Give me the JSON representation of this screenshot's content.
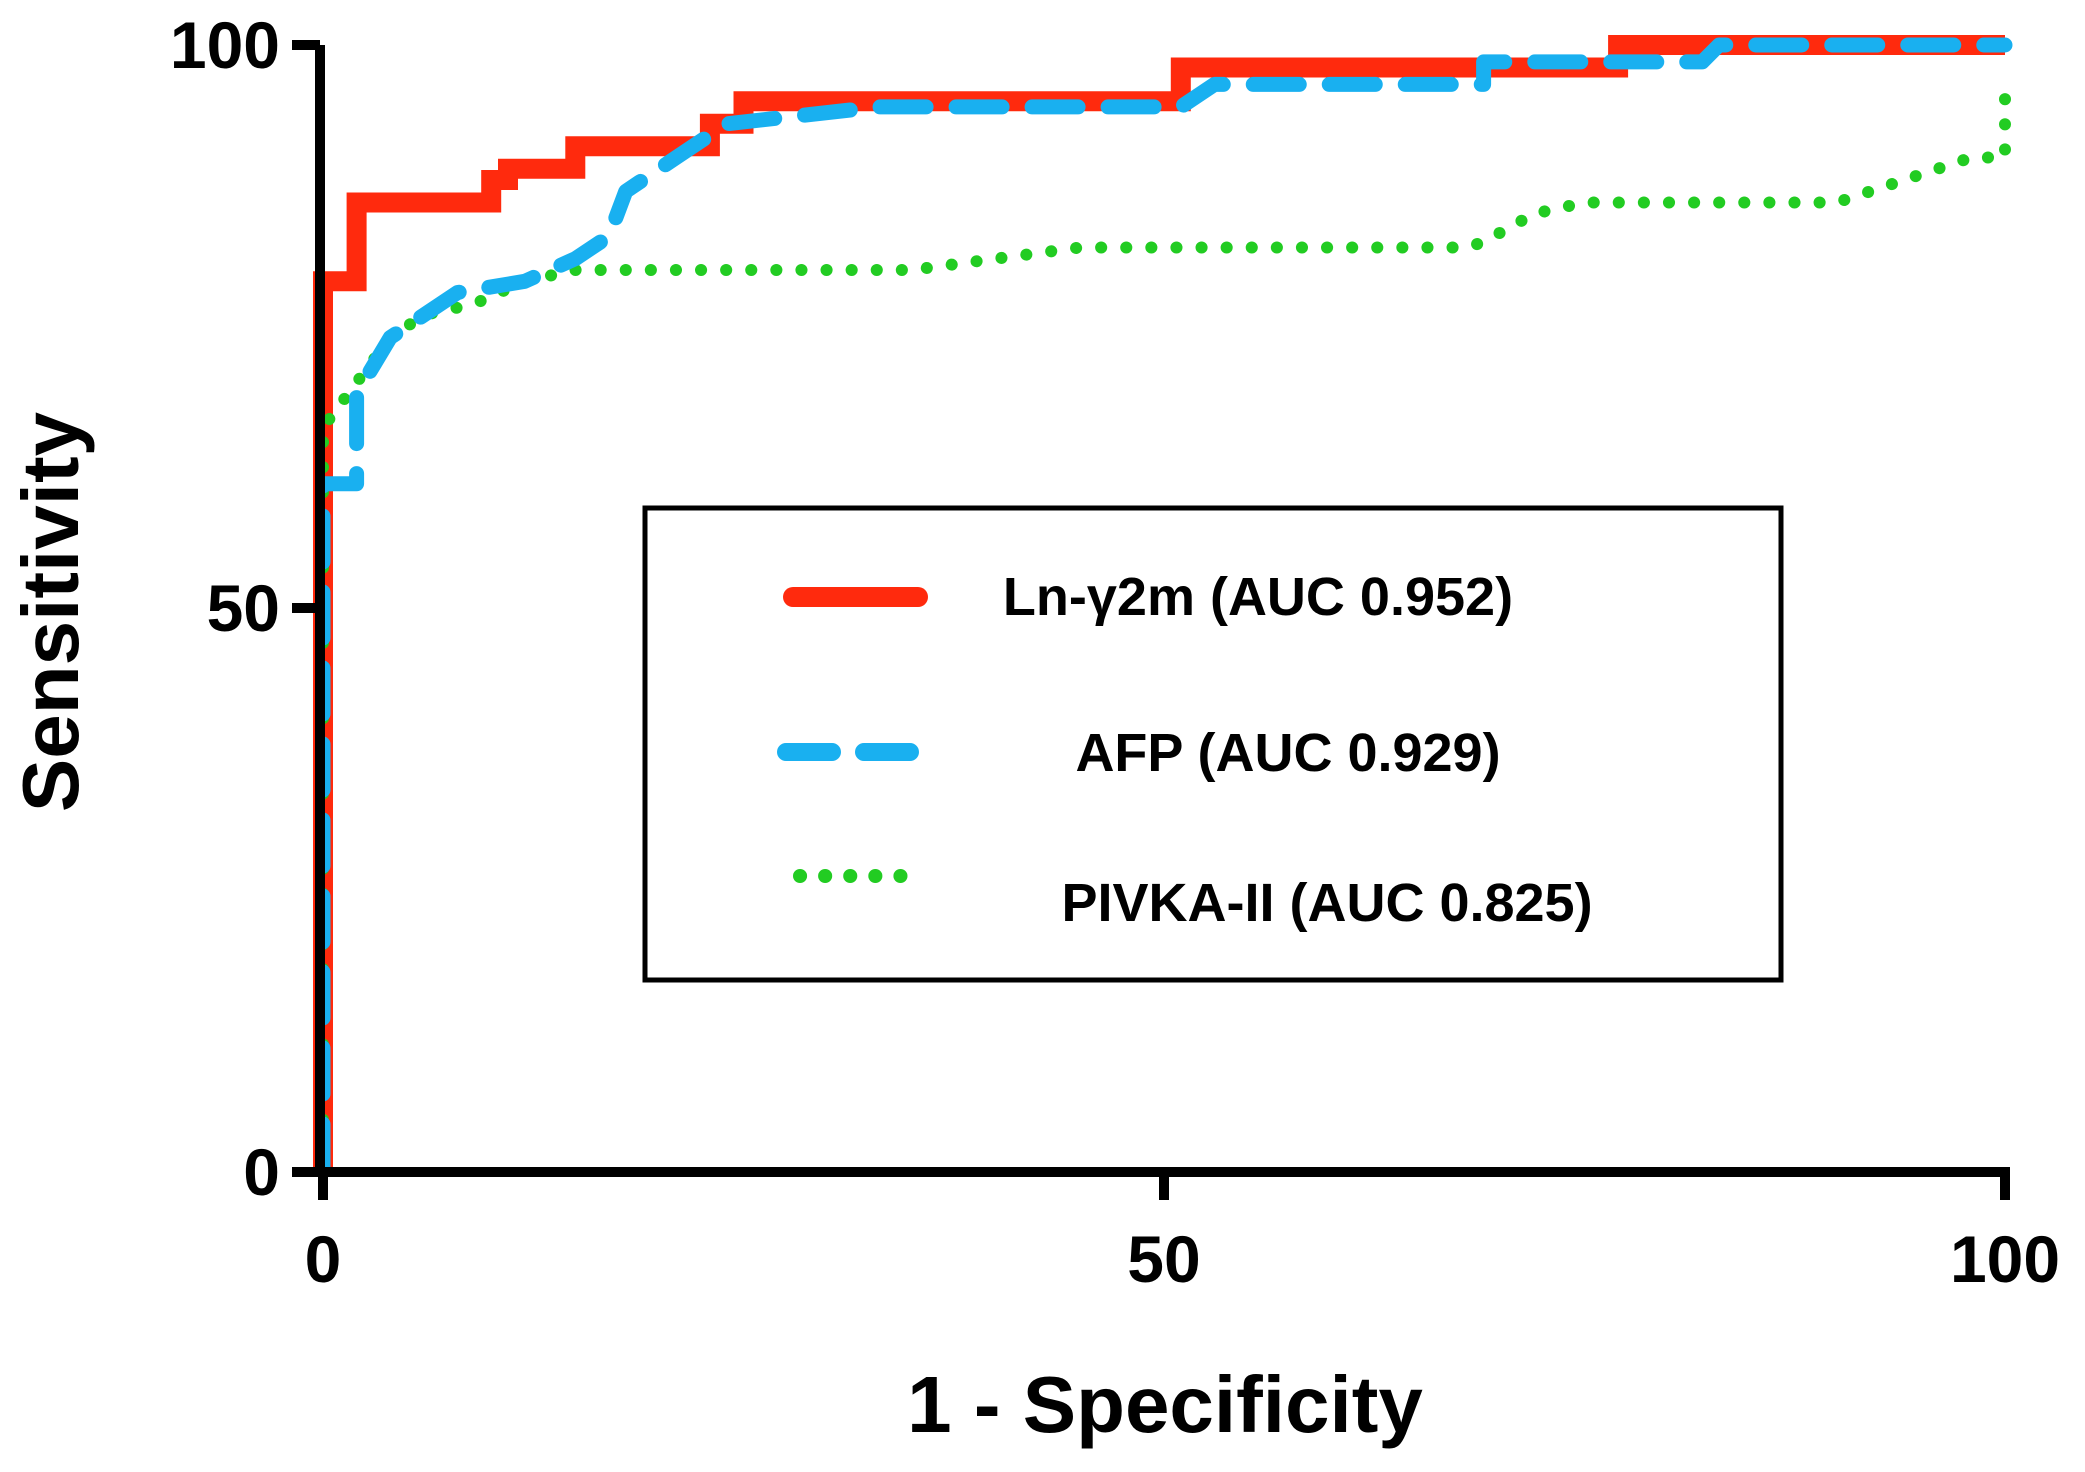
{
  "chart_data": {
    "type": "line",
    "xlabel": "1 - Specificity",
    "ylabel": "Sensitivity",
    "xlim": [
      0,
      100
    ],
    "ylim": [
      0,
      100
    ],
    "xticks": [
      "0",
      "50",
      "100"
    ],
    "yticks": [
      "0",
      "50",
      "100"
    ],
    "legend_position": "center-right",
    "series": [
      {
        "name": "Ln-γ2m (AUC 0.952)",
        "style": "solid",
        "color": "#ff2a0d",
        "points": [
          [
            0,
            0
          ],
          [
            0,
            61
          ],
          [
            0,
            79
          ],
          [
            2,
            79
          ],
          [
            2,
            86
          ],
          [
            10,
            86
          ],
          [
            10,
            88
          ],
          [
            11,
            88
          ],
          [
            11,
            89
          ],
          [
            15,
            89
          ],
          [
            15,
            91
          ],
          [
            23,
            91
          ],
          [
            23,
            93
          ],
          [
            25,
            93
          ],
          [
            25,
            95
          ],
          [
            51,
            95
          ],
          [
            51,
            98
          ],
          [
            77,
            98
          ],
          [
            77,
            100
          ],
          [
            100,
            100
          ]
        ]
      },
      {
        "name": "AFP (AUC 0.929)",
        "style": "dashed",
        "color": "#19b0f0",
        "points": [
          [
            0,
            0
          ],
          [
            0,
            61
          ],
          [
            2,
            61
          ],
          [
            2,
            69
          ],
          [
            4,
            74
          ],
          [
            6,
            76
          ],
          [
            8,
            78
          ],
          [
            12,
            79
          ],
          [
            15,
            81
          ],
          [
            17,
            83
          ],
          [
            18,
            87
          ],
          [
            21,
            90
          ],
          [
            24,
            93
          ],
          [
            33,
            94.5
          ],
          [
            51,
            94.5
          ],
          [
            53,
            96.5
          ],
          [
            69,
            96.5
          ],
          [
            69,
            98.5
          ],
          [
            82,
            98.5
          ],
          [
            83,
            100
          ],
          [
            100,
            100
          ]
        ]
      },
      {
        "name": "PIVKA-II (AUC 0.825)",
        "style": "dotted",
        "color": "#22cc22",
        "points": [
          [
            0,
            0
          ],
          [
            0,
            66
          ],
          [
            2,
            70
          ],
          [
            4,
            74
          ],
          [
            6,
            76
          ],
          [
            9,
            77
          ],
          [
            12,
            79
          ],
          [
            15,
            80
          ],
          [
            20,
            80
          ],
          [
            30,
            80
          ],
          [
            35,
            80
          ],
          [
            40,
            81
          ],
          [
            45,
            82
          ],
          [
            68,
            82
          ],
          [
            69,
            82.5
          ],
          [
            72,
            85
          ],
          [
            75,
            86
          ],
          [
            90,
            86
          ],
          [
            98,
            90
          ],
          [
            100,
            90
          ],
          [
            100,
            97
          ]
        ]
      }
    ]
  }
}
